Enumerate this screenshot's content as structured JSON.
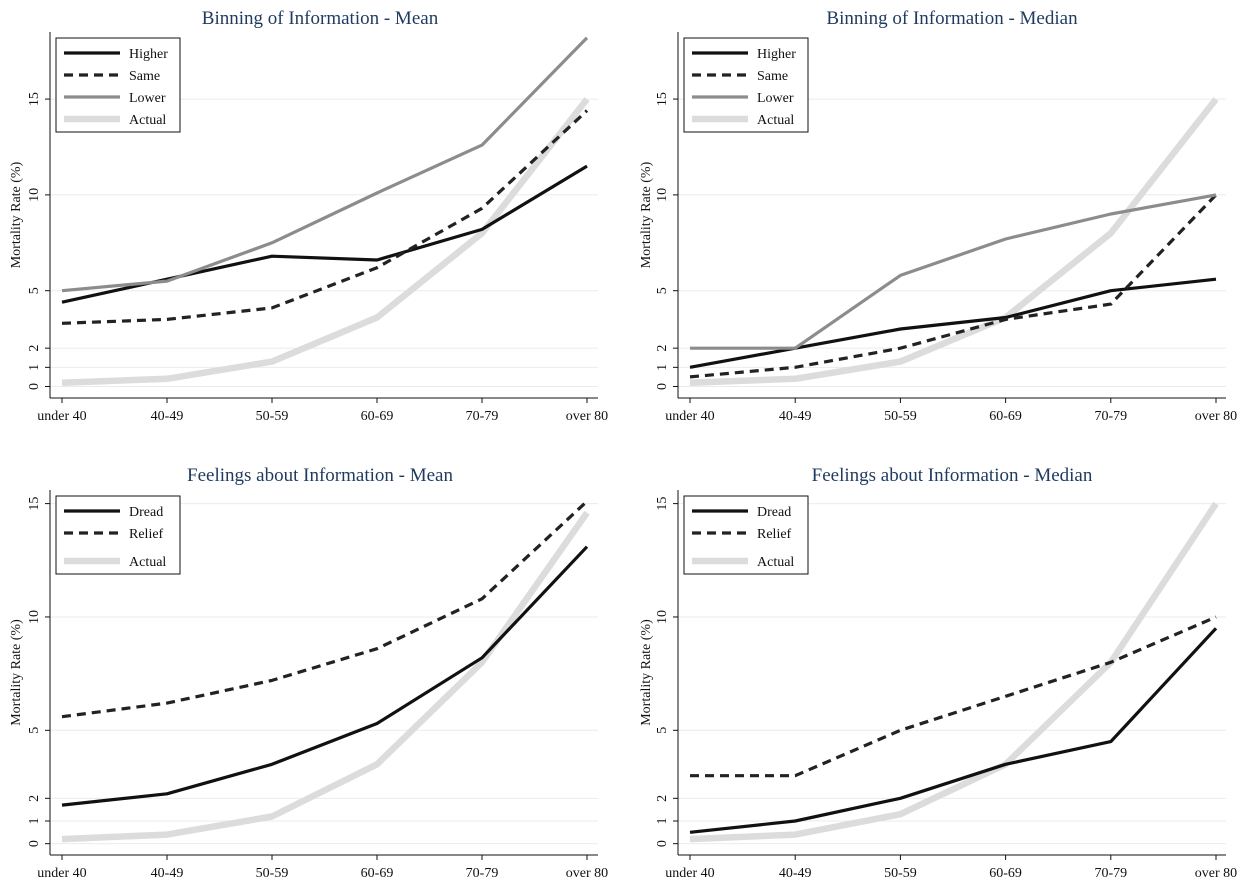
{
  "chart_data": [
    {
      "type": "line",
      "title": "Binning of Information - Mean",
      "xlabel": "",
      "ylabel": "Mortality Rate (%)",
      "categories": [
        "under 40",
        "40-49",
        "50-59",
        "60-69",
        "70-79",
        "over 80"
      ],
      "yticks": [
        0,
        1,
        2,
        5,
        10,
        15
      ],
      "ylim": [
        -0.6,
        18.5
      ],
      "grid": true,
      "legend_position": "top-left",
      "series": [
        {
          "name": "Higher",
          "values": [
            4.4,
            5.6,
            6.8,
            6.6,
            8.2,
            11.5
          ],
          "color": "#111111",
          "style": "solid"
        },
        {
          "name": "Same",
          "values": [
            3.3,
            3.5,
            4.1,
            6.2,
            9.3,
            14.4
          ],
          "color": "#222222",
          "style": "dashed"
        },
        {
          "name": "Lower",
          "values": [
            5.0,
            5.5,
            7.5,
            10.1,
            12.6,
            18.2
          ],
          "color": "#8c8c8c",
          "style": "solid"
        },
        {
          "name": "Actual",
          "values": [
            0.2,
            0.4,
            1.3,
            3.6,
            8.0,
            15.0
          ],
          "color": "#dcdcdc",
          "style": "solid-thick"
        }
      ]
    },
    {
      "type": "line",
      "title": "Binning of Information - Median",
      "xlabel": "",
      "ylabel": "Mortality Rate (%)",
      "categories": [
        "under 40",
        "40-49",
        "50-59",
        "60-69",
        "70-79",
        "over 80"
      ],
      "yticks": [
        0,
        1,
        2,
        5,
        10,
        15
      ],
      "ylim": [
        -0.6,
        18.5
      ],
      "grid": true,
      "legend_position": "top-left",
      "series": [
        {
          "name": "Higher",
          "values": [
            1.0,
            2.0,
            3.0,
            3.6,
            5.0,
            5.6
          ],
          "color": "#111111",
          "style": "solid"
        },
        {
          "name": "Same",
          "values": [
            0.5,
            1.0,
            2.0,
            3.5,
            4.3,
            10.0
          ],
          "color": "#222222",
          "style": "dashed"
        },
        {
          "name": "Lower",
          "values": [
            2.0,
            2.0,
            5.8,
            7.7,
            9.0,
            10.0
          ],
          "color": "#8c8c8c",
          "style": "solid"
        },
        {
          "name": "Actual",
          "values": [
            0.2,
            0.4,
            1.3,
            3.6,
            8.0,
            15.0
          ],
          "color": "#dcdcdc",
          "style": "solid-thick"
        }
      ]
    },
    {
      "type": "line",
      "title": "Feelings about Information - Mean",
      "xlabel": "",
      "ylabel": "Mortality Rate (%)",
      "categories": [
        "under 40",
        "40-49",
        "50-59",
        "60-69",
        "70-79",
        "over 80"
      ],
      "yticks": [
        0,
        1,
        2,
        5,
        10,
        15
      ],
      "ylim": [
        -0.5,
        15.6
      ],
      "grid": true,
      "legend_position": "top-left",
      "series": [
        {
          "name": "Dread",
          "values": [
            1.7,
            2.2,
            3.5,
            5.3,
            8.2,
            13.1
          ],
          "color": "#111111",
          "style": "solid"
        },
        {
          "name": "Relief",
          "values": [
            5.6,
            6.2,
            7.2,
            8.6,
            10.8,
            15.1
          ],
          "color": "#222222",
          "style": "dashed"
        },
        {
          "name": "Actual",
          "values": [
            0.2,
            0.4,
            1.2,
            3.5,
            8.0,
            14.6
          ],
          "color": "#dcdcdc",
          "style": "solid-thick"
        }
      ]
    },
    {
      "type": "line",
      "title": "Feelings about Information - Median",
      "xlabel": "",
      "ylabel": "Mortality Rate (%)",
      "categories": [
        "under 40",
        "40-49",
        "50-59",
        "60-69",
        "70-79",
        "over 80"
      ],
      "yticks": [
        0,
        1,
        2,
        5,
        10,
        15
      ],
      "ylim": [
        -0.5,
        15.6
      ],
      "grid": true,
      "legend_position": "top-left",
      "series": [
        {
          "name": "Dread",
          "values": [
            0.5,
            1.0,
            2.0,
            3.5,
            4.5,
            9.5
          ],
          "color": "#111111",
          "style": "solid"
        },
        {
          "name": "Relief",
          "values": [
            3.0,
            3.0,
            5.0,
            6.5,
            8.0,
            10.0
          ],
          "color": "#222222",
          "style": "dashed"
        },
        {
          "name": "Actual",
          "values": [
            0.2,
            0.4,
            1.3,
            3.5,
            8.0,
            15.0
          ],
          "color": "#dcdcdc",
          "style": "solid-thick"
        }
      ]
    }
  ]
}
